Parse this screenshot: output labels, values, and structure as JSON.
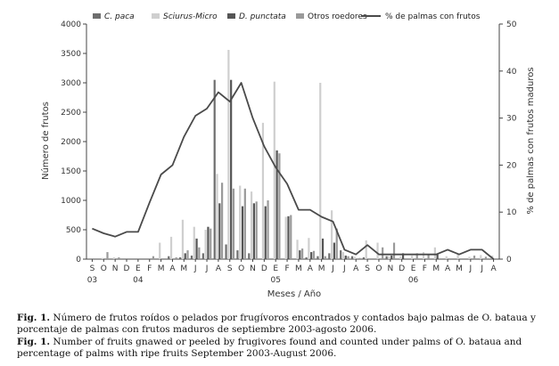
{
  "chart_data": {
    "type": "bar",
    "legend_position": "top",
    "xlabel": "Meses / Año",
    "ylabel_left": "Número de frutos",
    "ylabel_right": "% de palmas con frutos maduros",
    "ylim_left": [
      0,
      4000
    ],
    "ylim_right": [
      0,
      50
    ],
    "yticks_left": [
      "0",
      "500",
      "1000",
      "1500",
      "2000",
      "2500",
      "3000",
      "3500",
      "4000"
    ],
    "yticks_right": [
      "0",
      "10",
      "20",
      "30",
      "40",
      "50"
    ],
    "months": [
      "S",
      "O",
      "N",
      "D",
      "E",
      "F",
      "M",
      "A",
      "M",
      "J",
      "J",
      "A",
      "S",
      "O",
      "N",
      "D",
      "E",
      "F",
      "M",
      "A",
      "M",
      "J",
      "J",
      "A",
      "S",
      "O",
      "N",
      "D",
      "E",
      "F",
      "M",
      "A",
      "M",
      "J",
      "J",
      "A"
    ],
    "year_labels": [
      {
        "index": 0,
        "label": "03"
      },
      {
        "index": 4,
        "label": "04"
      },
      {
        "index": 16,
        "label": "05"
      },
      {
        "index": 28,
        "label": "06"
      }
    ],
    "series": [
      {
        "name": "C. paca",
        "kind": "bar",
        "color": "#6e6e6e",
        "values": [
          0,
          0,
          0,
          0,
          0,
          0,
          0,
          50,
          30,
          60,
          100,
          3050,
          250,
          150,
          100,
          0,
          0,
          0,
          0,
          30,
          50,
          100,
          150,
          50,
          30,
          0,
          50,
          0,
          0,
          0,
          0,
          0,
          0,
          0,
          0,
          0
        ]
      },
      {
        "name": "Sciurus-Micro",
        "kind": "bar",
        "color": "#cfcfcf",
        "values": [
          0,
          20,
          30,
          0,
          0,
          0,
          280,
          380,
          670,
          550,
          500,
          1450,
          3560,
          1250,
          1150,
          2320,
          3020,
          720,
          330,
          360,
          3000,
          830,
          120,
          40,
          320,
          280,
          50,
          50,
          60,
          120,
          200,
          50,
          80,
          40,
          70,
          60
        ]
      },
      {
        "name": "D. punctata",
        "kind": "bar",
        "color": "#555555",
        "values": [
          0,
          0,
          0,
          0,
          0,
          0,
          0,
          0,
          100,
          350,
          550,
          950,
          3050,
          900,
          950,
          900,
          1850,
          730,
          150,
          120,
          350,
          280,
          60,
          0,
          0,
          0,
          60,
          100,
          0,
          0,
          80,
          0,
          0,
          0,
          0,
          0
        ]
      },
      {
        "name": "Otros roedores",
        "kind": "bar",
        "color": "#9a9a9a",
        "values": [
          0,
          120,
          30,
          0,
          0,
          50,
          0,
          30,
          150,
          200,
          520,
          1300,
          1200,
          1200,
          980,
          1000,
          1800,
          750,
          180,
          140,
          50,
          520,
          50,
          20,
          0,
          200,
          280,
          0,
          100,
          70,
          0,
          0,
          0,
          60,
          40,
          0
        ]
      },
      {
        "name": "% de palmas con frutos",
        "kind": "line",
        "color": "#4a4a4a",
        "values": [
          6.5,
          5.5,
          4.8,
          5.8,
          5.8,
          12,
          18,
          20,
          26,
          30.5,
          32,
          35.5,
          33.5,
          37.5,
          30,
          24,
          19.5,
          16,
          10.5,
          10.5,
          9,
          8,
          2,
          1,
          3,
          1,
          1,
          1,
          1,
          1,
          1,
          2,
          1,
          2,
          2,
          0
        ]
      }
    ]
  },
  "caption": {
    "es_label": "Fig. 1.",
    "es_text": "Número de frutos roídos o pelados por frugívoros encontrados y contados bajo palmas de O. bataua y porcentaje de palmas con frutos maduros de septiembre 2003-agosto 2006.",
    "en_label": "Fig. 1.",
    "en_text": "Number of fruits gnawed or peeled by frugivores found and counted under palms of O. bataua and percentage of palms with ripe fruits September 2003-August 2006."
  }
}
